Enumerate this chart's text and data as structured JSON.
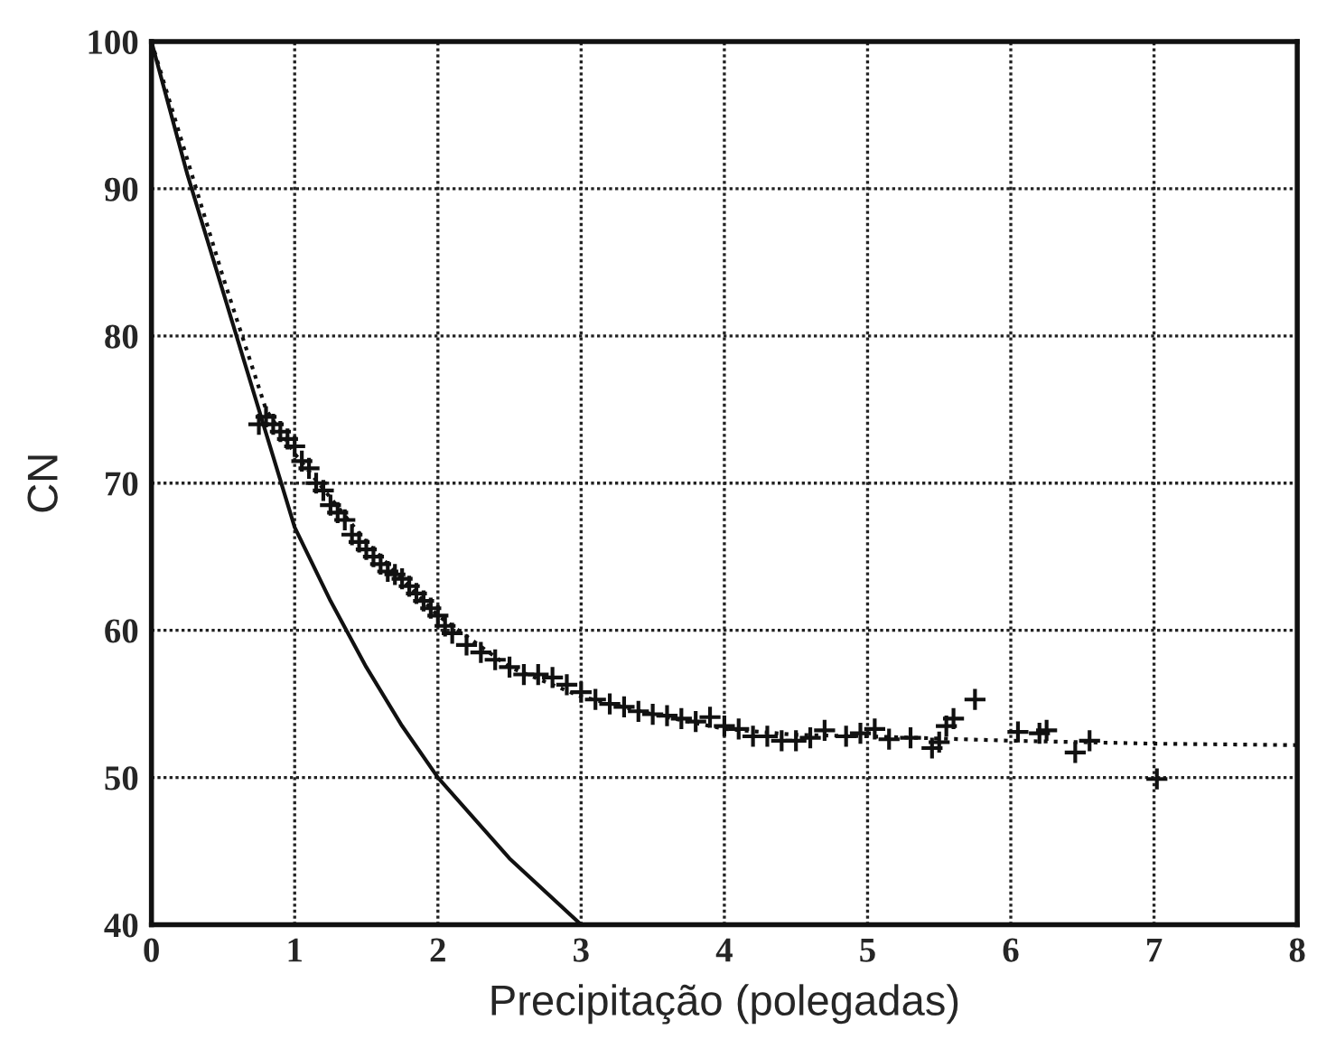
{
  "chart_data": {
    "type": "line",
    "xlabel": "Precipitação (polegadas)",
    "ylabel": "CN",
    "xlim": [
      0,
      8
    ],
    "ylim": [
      40,
      100
    ],
    "xticks": [
      0,
      1,
      2,
      3,
      4,
      5,
      6,
      7,
      8
    ],
    "yticks": [
      40,
      50,
      60,
      70,
      80,
      90,
      100
    ],
    "grid": true,
    "series": [
      {
        "line_style": "solid",
        "color": "#111111",
        "x": [
          0,
          0.25,
          0.5,
          0.75,
          1,
          1.25,
          1.5,
          1.75,
          2,
          2.5,
          3
        ],
        "values": [
          100,
          91,
          83,
          75,
          67,
          62,
          57.5,
          53.5,
          50,
          44.5,
          40
        ]
      },
      {
        "line_style": "dotted",
        "color": "#111111",
        "x": [
          0,
          0.25,
          0.5,
          0.8,
          1,
          1.5,
          2,
          2.5,
          3,
          3.5,
          4,
          4.5,
          5,
          6,
          7,
          8
        ],
        "values": [
          100,
          92,
          84,
          75,
          72,
          66,
          61,
          57.5,
          55.5,
          54.3,
          53.3,
          52.9,
          52.8,
          52.5,
          52.3,
          52.2
        ]
      },
      {
        "type": "scatter",
        "marker": "cross",
        "color": "#111111",
        "x": [
          0.75,
          0.8,
          0.85,
          0.9,
          0.95,
          1.0,
          1.05,
          1.1,
          1.15,
          1.2,
          1.25,
          1.3,
          1.35,
          1.4,
          1.45,
          1.5,
          1.55,
          1.6,
          1.65,
          1.7,
          1.75,
          1.8,
          1.85,
          1.9,
          1.95,
          2.0,
          2.05,
          2.1,
          2.2,
          2.3,
          2.4,
          2.5,
          2.6,
          2.7,
          2.8,
          2.9,
          3.0,
          3.1,
          3.2,
          3.3,
          3.4,
          3.5,
          3.6,
          3.7,
          3.8,
          3.9,
          4.0,
          4.1,
          4.2,
          4.3,
          4.4,
          4.5,
          4.6,
          4.7,
          4.85,
          4.95,
          5.05,
          5.15,
          5.3,
          5.45,
          5.5,
          5.55,
          5.6,
          5.75,
          6.05,
          6.2,
          6.25,
          6.45,
          6.55,
          7.02
        ],
        "values": [
          74,
          74.5,
          74,
          73.5,
          73,
          72.5,
          71.5,
          71,
          70,
          69.5,
          68.5,
          68,
          67.5,
          66.5,
          66,
          65.5,
          65,
          64.5,
          64,
          63.8,
          63.5,
          63,
          62.5,
          62,
          61.5,
          61,
          60.3,
          59.8,
          59,
          58.5,
          58,
          57.5,
          57,
          57,
          56.8,
          56.3,
          55.8,
          55.3,
          55,
          54.8,
          54.5,
          54.3,
          54.2,
          54,
          53.8,
          54.1,
          53.5,
          53.3,
          52.8,
          52.8,
          52.5,
          52.5,
          52.7,
          53.2,
          52.8,
          53,
          53.3,
          52.6,
          52.7,
          52,
          52.4,
          53.5,
          54,
          55.3,
          53.1,
          53,
          53.2,
          51.7,
          52.5,
          49.9
        ]
      }
    ]
  }
}
